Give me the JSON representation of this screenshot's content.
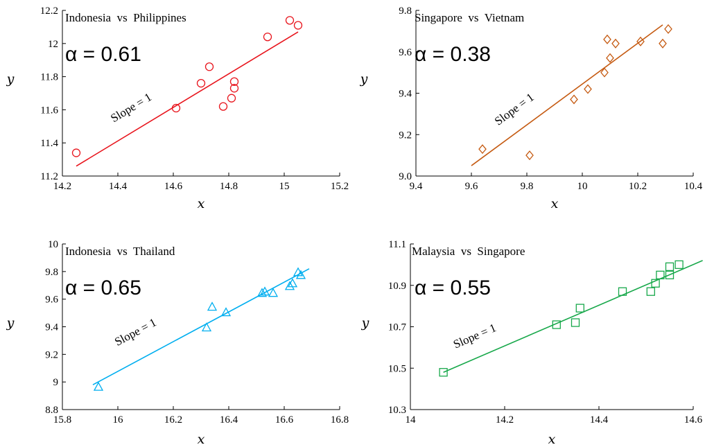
{
  "chart_data": [
    {
      "type": "scatter",
      "title": "Indonesia  vs  Philippines",
      "annotation": "α = 0.61",
      "line_label": "Slope = 1",
      "xlabel": "x",
      "ylabel": "y",
      "color": "#e8141c",
      "marker": "circle",
      "xlim": [
        14.2,
        15.2
      ],
      "ylim": [
        11.2,
        12.2
      ],
      "xticks": [
        14.2,
        14.4,
        14.6,
        14.8,
        15,
        15.2
      ],
      "xtick_labels": [
        "14.2",
        "14.4",
        "14.6",
        "14.8",
        "15",
        "15.2"
      ],
      "yticks": [
        11.2,
        11.4,
        11.6,
        11.8,
        12,
        12.2
      ],
      "ytick_labels": [
        "11.2",
        "11.4",
        "11.6",
        "11.8",
        "12",
        "12.2"
      ],
      "x": [
        14.25,
        14.61,
        14.7,
        14.73,
        14.78,
        14.81,
        14.82,
        14.82,
        14.94,
        15.02,
        15.05
      ],
      "y": [
        11.34,
        11.61,
        11.76,
        11.86,
        11.62,
        11.67,
        11.73,
        11.77,
        12.04,
        12.14,
        12.11
      ],
      "fit_line": {
        "x": [
          14.25,
          15.05
        ],
        "y": [
          11.26,
          12.07
        ]
      }
    },
    {
      "type": "scatter",
      "title": "Singapore  vs  Vietnam",
      "annotation": "α = 0.38",
      "line_label": "Slope = 1",
      "xlabel": "x",
      "ylabel": "y",
      "color": "#c55a11",
      "marker": "diamond",
      "xlim": [
        9.4,
        10.4
      ],
      "ylim": [
        9.0,
        9.8
      ],
      "xticks": [
        9.4,
        9.6,
        9.8,
        10,
        10.2,
        10.4
      ],
      "xtick_labels": [
        "9.4",
        "9.6",
        "9.8",
        "10",
        "10.2",
        "10.4"
      ],
      "yticks": [
        9.0,
        9.2,
        9.4,
        9.6,
        9.8
      ],
      "ytick_labels": [
        "9.0",
        "9.2",
        "9.4",
        "9.6",
        "9.8"
      ],
      "x": [
        9.64,
        9.81,
        9.97,
        10.02,
        10.08,
        10.09,
        10.1,
        10.12,
        10.21,
        10.29,
        10.31
      ],
      "y": [
        9.13,
        9.1,
        9.37,
        9.42,
        9.5,
        9.66,
        9.57,
        9.64,
        9.65,
        9.64,
        9.71
      ],
      "fit_line": {
        "x": [
          9.6,
          10.29
        ],
        "y": [
          9.05,
          9.73
        ]
      }
    },
    {
      "type": "scatter",
      "title": "Indonesia  vs  Thailand",
      "annotation": "α = 0.65",
      "line_label": "Slope = 1",
      "xlabel": "x",
      "ylabel": "y",
      "color": "#00aeef",
      "marker": "triangle",
      "xlim": [
        15.8,
        16.8
      ],
      "ylim": [
        8.8,
        10
      ],
      "xticks": [
        15.8,
        16,
        16.2,
        16.4,
        16.6,
        16.8
      ],
      "xtick_labels": [
        "15.8",
        "16",
        "16.2",
        "16.4",
        "16.6",
        "16.8"
      ],
      "yticks": [
        8.8,
        9,
        9.2,
        9.4,
        9.6,
        9.8,
        10
      ],
      "ytick_labels": [
        "8.8",
        "9",
        "9.2",
        "9.4",
        "9.6",
        "9.8",
        "10"
      ],
      "x": [
        15.93,
        16.32,
        16.34,
        16.39,
        16.52,
        16.53,
        16.56,
        16.62,
        16.63,
        16.65,
        16.66
      ],
      "y": [
        8.96,
        9.39,
        9.54,
        9.5,
        9.64,
        9.65,
        9.64,
        9.69,
        9.71,
        9.79,
        9.77
      ],
      "fit_line": {
        "x": [
          15.91,
          16.69
        ],
        "y": [
          8.98,
          9.82
        ]
      }
    },
    {
      "type": "scatter",
      "title": "Malaysia  vs  Singapore",
      "annotation": "α = 0.55",
      "line_label": "Slope = 1",
      "xlabel": "x",
      "ylabel": "y",
      "color": "#17a84a",
      "marker": "square",
      "xlim": [
        14,
        14.6
      ],
      "ylim": [
        10.3,
        11.1
      ],
      "xticks": [
        14,
        14.2,
        14.4,
        14.6
      ],
      "xtick_labels": [
        "14",
        "14.2",
        "14.4",
        "14.6"
      ],
      "yticks": [
        10.3,
        10.5,
        10.7,
        10.9,
        11.1
      ],
      "ytick_labels": [
        "10.3",
        "10.5",
        "10.7",
        "10.9",
        "11.1"
      ],
      "x": [
        14.07,
        14.31,
        14.35,
        14.36,
        14.45,
        14.51,
        14.52,
        14.53,
        14.55,
        14.55,
        14.57
      ],
      "y": [
        10.48,
        10.71,
        10.72,
        10.79,
        10.87,
        10.87,
        10.91,
        10.95,
        10.95,
        10.99,
        11.0
      ],
      "fit_line": {
        "x": [
          14.07,
          14.62
        ],
        "y": [
          10.48,
          11.02
        ]
      }
    }
  ]
}
